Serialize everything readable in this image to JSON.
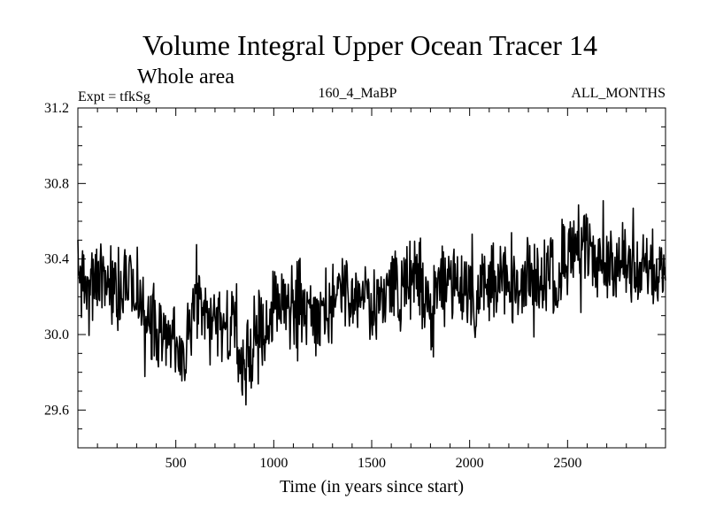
{
  "chart_data": {
    "type": "line",
    "title": "Volume Integral Upper Ocean Tracer 14",
    "subtitle": "Whole area",
    "experiment": "Expt = tfkSg",
    "run_label": "160_4_MaBP",
    "months_label": "ALL_MONTHS",
    "xlabel": "Time (in years since start)",
    "ylabel": "",
    "xlim": [
      0,
      3000
    ],
    "ylim": [
      29.4,
      31.2
    ],
    "x_ticks": [
      500,
      1000,
      1500,
      2000,
      2500
    ],
    "x_tick_labels": [
      "500",
      "1000",
      "1500",
      "2000",
      "2500"
    ],
    "y_ticks": [
      29.6,
      30.0,
      30.4,
      30.8,
      31.2
    ],
    "y_tick_labels": [
      "29.6",
      "30.0",
      "30.4",
      "30.8",
      "31.2"
    ],
    "series": [
      {
        "name": "Tracer 14 volume integral",
        "color": "#000000",
        "x": [
          0,
          50,
          100,
          150,
          200,
          250,
          300,
          350,
          400,
          450,
          500,
          550,
          600,
          650,
          700,
          750,
          800,
          850,
          900,
          950,
          1000,
          1050,
          1100,
          1150,
          1200,
          1250,
          1300,
          1350,
          1400,
          1450,
          1500,
          1550,
          1600,
          1650,
          1700,
          1750,
          1800,
          1850,
          1900,
          1950,
          2000,
          2050,
          2100,
          2150,
          2200,
          2250,
          2300,
          2350,
          2400,
          2450,
          2500,
          2550,
          2600,
          2650,
          2700,
          2750,
          2800,
          2850,
          2900,
          2950,
          3000
        ],
        "values": [
          30.35,
          30.22,
          30.3,
          30.28,
          30.24,
          30.3,
          30.22,
          30.12,
          30.05,
          30.02,
          29.9,
          29.92,
          30.12,
          30.1,
          30.08,
          30.04,
          30.0,
          29.78,
          29.98,
          30.08,
          30.12,
          30.2,
          30.15,
          30.18,
          30.1,
          30.08,
          30.2,
          30.22,
          30.18,
          30.25,
          30.12,
          30.2,
          30.28,
          30.22,
          30.3,
          30.3,
          30.1,
          30.25,
          30.3,
          30.28,
          30.2,
          30.22,
          30.28,
          30.3,
          30.25,
          30.2,
          30.3,
          30.28,
          30.35,
          30.3,
          30.45,
          30.5,
          30.42,
          30.38,
          30.4,
          30.35,
          30.4,
          30.3,
          30.35,
          30.3,
          30.35
        ]
      }
    ]
  }
}
